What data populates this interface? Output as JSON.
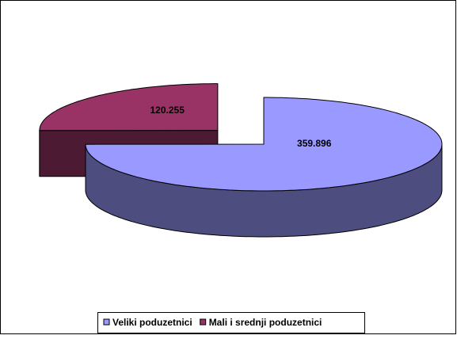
{
  "chart_data": {
    "type": "pie",
    "three_d": true,
    "categories": [
      "Veliki poduzetnici",
      "Mali i srednji poduzetnici"
    ],
    "values": [
      359896,
      120255
    ],
    "value_labels": [
      "359.896",
      "120.255"
    ],
    "colors": [
      "#9999ff",
      "#993366"
    ],
    "legend": "bottom"
  }
}
